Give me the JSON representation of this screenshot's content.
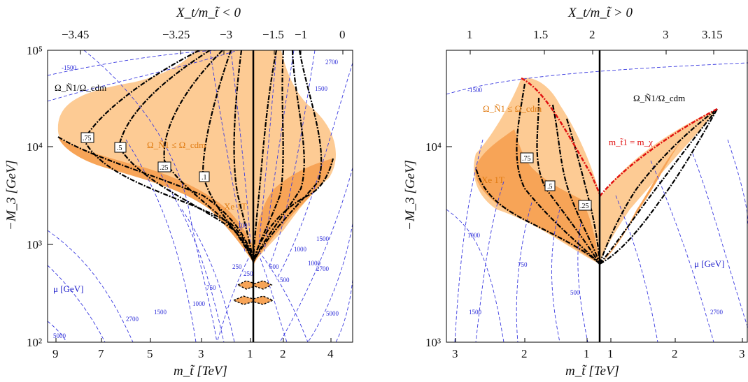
{
  "chart_data": [
    {
      "type": "contour",
      "panel": "left",
      "top_axis_title": "X_t/m_t̃ < 0",
      "bottom_axis_title": "m_t̃ [TeV]",
      "y_axis_title": "−M_3 [GeV]",
      "yscale": "log",
      "ylim": [
        90,
        100000
      ],
      "bottom_ticks": [
        "9",
        "7",
        "5",
        "3",
        "1",
        "2",
        "4"
      ],
      "top_ticks": [
        "−3.45",
        "−3.25",
        "−3",
        "−1.5",
        "−1",
        "0"
      ],
      "y_ticks": [
        "10²",
        "10³",
        "10⁴",
        "10⁵"
      ],
      "annotations": [
        {
          "text": "Ω_Ñ1/Ω_cdm",
          "color": "#000000"
        },
        {
          "text": "Ω_Ñ1 ≤ Ω_cdm",
          "color": "#e07a10"
        },
        {
          "text": "Xe 1T",
          "color": "#e07a10"
        },
        {
          "text": "μ [GeV]",
          "color": "#2222cc"
        }
      ],
      "relic_ratio_labels": [
        ".75",
        ".5",
        ".25",
        ".1"
      ],
      "mu_contour_labels": [
        "-1500",
        "2700",
        "1500",
        "1000",
        "500",
        "250",
        "750",
        "1000",
        "1500",
        "2700",
        "5000",
        "100",
        "250",
        "500",
        "1000",
        "1500",
        "2700",
        "5000"
      ]
    },
    {
      "type": "contour",
      "panel": "right",
      "top_axis_title": "X_t/m_t̃ > 0",
      "bottom_axis_title": "m_t̃ [TeV]",
      "y_axis_title": "−M_3 [GeV]",
      "yscale": "log",
      "ylim": [
        1000,
        40000
      ],
      "bottom_ticks": [
        "3",
        "2",
        "1",
        "1",
        "2",
        "3"
      ],
      "top_ticks": [
        "1",
        "1.5",
        "2",
        "3",
        "3.15"
      ],
      "y_ticks": [
        "10³",
        "10⁴"
      ],
      "annotations": [
        {
          "text": "Ω_Ñ1/Ω_cdm",
          "color": "#000000"
        },
        {
          "text": "Ω_Ñ1 ≤ Ω_cdm",
          "color": "#e07a10"
        },
        {
          "text": "m_t̃1 = m_χ",
          "color": "#e01010"
        },
        {
          "text": "Xe 1T",
          "color": "#e07a10"
        },
        {
          "text": "μ [GeV]",
          "color": "#2222cc"
        }
      ],
      "relic_ratio_labels": [
        ".75",
        ".5",
        ".25"
      ],
      "mu_contour_labels": [
        "-1500",
        "1000",
        "750",
        "500",
        "1500",
        "2700"
      ]
    }
  ],
  "colors": {
    "light_orange": "#fdcb94",
    "dark_orange": "#f7a457",
    "contour_blue": "#3a3ae0",
    "red_boundary": "#e01010",
    "annotation_orange": "#e07a10"
  }
}
